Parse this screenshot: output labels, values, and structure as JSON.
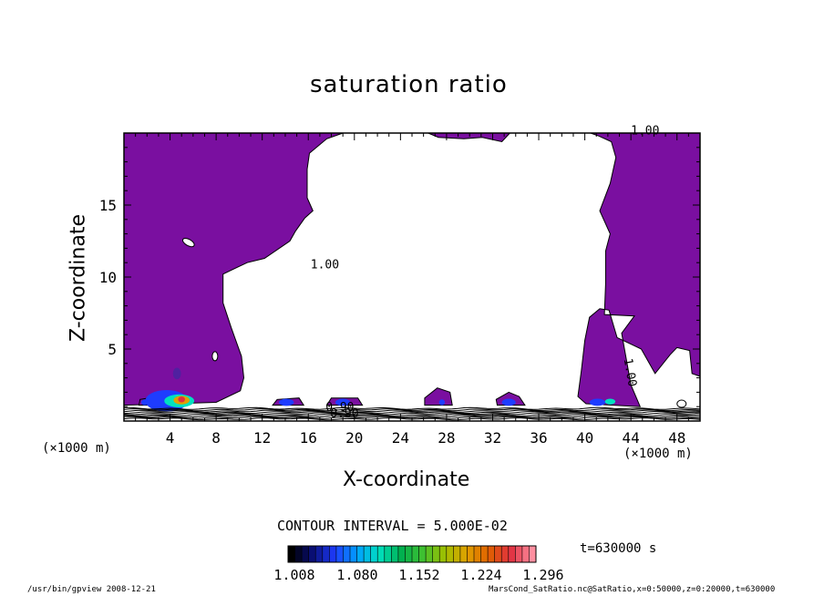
{
  "chart_data": {
    "type": "contour",
    "title": "saturation ratio",
    "xlabel": "X-coordinate",
    "ylabel": "Z-coordinate",
    "x_unit": "(×1000 m)",
    "z_unit": "(×1000 m)",
    "xlim": [
      0,
      50
    ],
    "ylim": [
      0,
      20
    ],
    "x_ticks": [
      4,
      8,
      12,
      16,
      20,
      24,
      28,
      32,
      36,
      40,
      44,
      48
    ],
    "y_ticks": [
      5,
      10,
      15
    ],
    "contour_interval": "CONTOUR INTERVAL = 5.000E-02",
    "contour_labels": [
      "1.00",
      "1.00",
      "1.00",
      "0.90",
      "0.90"
    ],
    "colorbar_ticks": [
      "1.008",
      "1.080",
      "1.152",
      "1.224",
      "1.296"
    ],
    "saturated_fill": "#7a0fa0",
    "colorbar_colors": [
      "#000000",
      "#0a0f7a",
      "#1e3cff",
      "#00a0ff",
      "#00e0c0",
      "#00b050",
      "#40c030",
      "#a0c000",
      "#e0a000",
      "#e06000",
      "#e03040",
      "#ff8fa0"
    ],
    "time_label": "t=630000 s",
    "footer_left": "/usr/bin/gpview   2008-12-21",
    "footer_right": "MarsCond_SatRatio.nc@SatRatio,x=0:50000,z=0:20000,t=630000"
  }
}
